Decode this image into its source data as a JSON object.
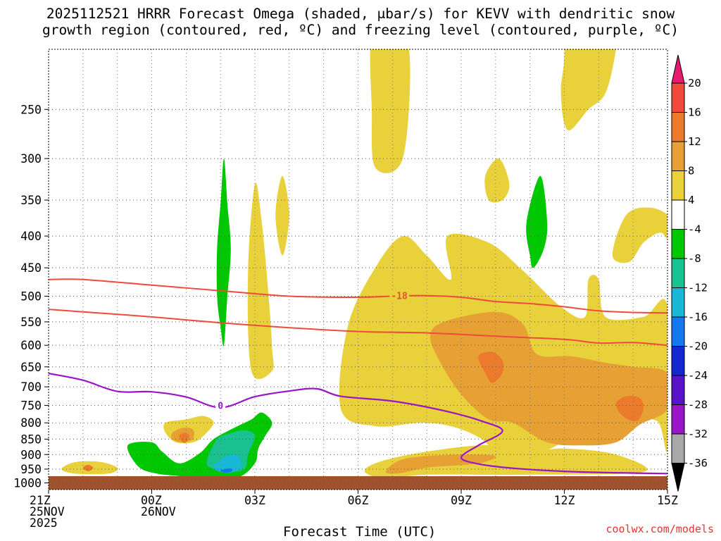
{
  "title": {
    "line1": "2025112521 HRRR Forecast Omega (shaded, μbar/s) for KEVV with dendritic snow",
    "line2": "growth region (contoured, red, ºC) and freezing level (contoured, purple, ºC)"
  },
  "xlabel": "Forecast Time (UTC)",
  "credit": "coolwx.com/models",
  "chart_data": {
    "type": "contour-timeseries",
    "x": {
      "unit": "hours after 21Z 25NOV2025",
      "range": [
        0,
        18
      ],
      "ticks": [
        {
          "h": 0,
          "lines": [
            "21Z",
            "25NOV",
            "2025"
          ]
        },
        {
          "h": 3,
          "lines": [
            "00Z",
            "26NOV"
          ]
        },
        {
          "h": 6,
          "lines": [
            "03Z"
          ]
        },
        {
          "h": 9,
          "lines": [
            "06Z"
          ]
        },
        {
          "h": 12,
          "lines": [
            "09Z"
          ]
        },
        {
          "h": 15,
          "lines": [
            "12Z"
          ]
        },
        {
          "h": 18,
          "lines": [
            "15Z"
          ]
        }
      ]
    },
    "y": {
      "unit": "hPa",
      "range_top": 200,
      "range_bottom": 1025,
      "ticks": [
        250,
        300,
        350,
        400,
        450,
        500,
        550,
        600,
        650,
        700,
        750,
        800,
        850,
        900,
        950,
        1000
      ]
    },
    "colorbar": {
      "labels": [
        "20",
        "16",
        "12",
        "8",
        "4",
        "-4",
        "-8",
        "-12",
        "-16",
        "-20",
        "-24",
        "-28",
        "-32",
        "-36"
      ],
      "colors": [
        "#e8196e",
        "#f04a3a",
        "#ec7a2c",
        "#e6a033",
        "#e8d13a",
        "#ffffff",
        "#00c800",
        "#19c090",
        "#19b8d8",
        "#1478ee",
        "#1428d0",
        "#5a14c8",
        "#9a14c8",
        "#a8a8a8",
        "#000000"
      ]
    },
    "contours": {
      "dgz_upper": {
        "label": "-18",
        "color": "#f04a3a",
        "points": [
          [
            0,
            470
          ],
          [
            1,
            470
          ],
          [
            3,
            480
          ],
          [
            5,
            490
          ],
          [
            7,
            500
          ],
          [
            9,
            502
          ],
          [
            10,
            500
          ],
          [
            11,
            499
          ],
          [
            12,
            502
          ],
          [
            13,
            510
          ],
          [
            14,
            514
          ],
          [
            15,
            520
          ],
          [
            16,
            528
          ],
          [
            17,
            531
          ],
          [
            18,
            532
          ]
        ]
      },
      "dgz_lower": {
        "color": "#f04a3a",
        "points": [
          [
            0,
            525
          ],
          [
            1,
            530
          ],
          [
            3,
            540
          ],
          [
            5,
            552
          ],
          [
            7,
            562
          ],
          [
            9,
            570
          ],
          [
            11,
            573
          ],
          [
            13,
            580
          ],
          [
            15,
            587
          ],
          [
            16,
            595
          ],
          [
            17,
            594
          ],
          [
            18,
            600
          ]
        ]
      },
      "freezing": {
        "label": "0",
        "color": "#9a14c8",
        "points": [
          [
            0,
            666
          ],
          [
            1,
            683
          ],
          [
            2,
            712
          ],
          [
            3,
            713
          ],
          [
            4,
            727
          ],
          [
            5,
            756
          ],
          [
            6,
            726
          ],
          [
            7,
            711
          ],
          [
            7.8,
            705
          ],
          [
            8.5,
            725
          ],
          [
            10,
            738
          ],
          [
            11.5,
            765
          ],
          [
            12.6,
            795
          ],
          [
            13.2,
            825
          ],
          [
            12.5,
            870
          ],
          [
            12,
            910
          ],
          [
            12.5,
            932
          ],
          [
            13.5,
            947
          ],
          [
            15,
            958
          ],
          [
            16.5,
            963
          ],
          [
            18,
            966
          ]
        ]
      }
    },
    "omega_regions": [
      {
        "level": "4",
        "color": "#e8d13a",
        "shape": [
          [
            9.5,
            810
          ],
          [
            8.5,
            760
          ],
          [
            8.7,
            560
          ],
          [
            9.5,
            450
          ],
          [
            10.3,
            400
          ],
          [
            11,
            430
          ],
          [
            11.7,
            470
          ],
          [
            11.6,
            400
          ],
          [
            12.8,
            410
          ],
          [
            13.8,
            455
          ],
          [
            14.9,
            520
          ],
          [
            15.6,
            540
          ],
          [
            15.7,
            470
          ],
          [
            16,
            470
          ],
          [
            16.2,
            540
          ],
          [
            17.3,
            540
          ],
          [
            18,
            520
          ],
          [
            18,
            875
          ],
          [
            17.7,
            795
          ],
          [
            16.8,
            795
          ],
          [
            16,
            830
          ],
          [
            15,
            860
          ],
          [
            14.3,
            895
          ],
          [
            13.3,
            925
          ],
          [
            12.6,
            850
          ],
          [
            11.7,
            810
          ],
          [
            10.8,
            800
          ]
        ]
      },
      {
        "level": "4",
        "color": "#e8d13a",
        "shape": [
          [
            16.4,
            430
          ],
          [
            16.8,
            370
          ],
          [
            17.5,
            360
          ],
          [
            18.1,
            375
          ],
          [
            18.1,
            410
          ],
          [
            17.8,
            395
          ],
          [
            17.3,
            410
          ],
          [
            16.9,
            440
          ]
        ]
      },
      {
        "level": "4",
        "color": "#e8d13a",
        "shape": [
          [
            14.7,
            100
          ],
          [
            15,
            190
          ],
          [
            14.9,
            235
          ],
          [
            15.1,
            270
          ],
          [
            15.7,
            250
          ],
          [
            16.2,
            235
          ],
          [
            16.5,
            200
          ],
          [
            16.6,
            170
          ],
          [
            17,
            120
          ]
        ]
      },
      {
        "level": "4",
        "color": "#e8d13a",
        "shape": [
          [
            9.4,
            190
          ],
          [
            10,
            185
          ],
          [
            10.5,
            205
          ],
          [
            10.3,
            300
          ],
          [
            9.5,
            310
          ],
          [
            9.4,
            250
          ]
        ]
      },
      {
        "level": "4",
        "color": "#e8d13a",
        "shape": [
          [
            12.7,
            320
          ],
          [
            13.1,
            300
          ],
          [
            13.4,
            330
          ],
          [
            13.2,
            350
          ],
          [
            12.8,
            350
          ]
        ]
      },
      {
        "level": "4",
        "color": "#e8d13a",
        "shape": [
          [
            6.6,
            370
          ],
          [
            6.8,
            320
          ],
          [
            7,
            370
          ],
          [
            6.8,
            430
          ]
        ]
      },
      {
        "level": "4",
        "color": "#e8d13a",
        "shape": [
          [
            5.8,
            460
          ],
          [
            6,
            330
          ],
          [
            6.2,
            380
          ],
          [
            6.4,
            500
          ],
          [
            6.5,
            605
          ],
          [
            6.5,
            660
          ],
          [
            5.9,
            660
          ]
        ]
      },
      {
        "level": "4",
        "color": "#e8d13a",
        "shape": [
          [
            9.2,
            960
          ],
          [
            9.5,
            930
          ],
          [
            10.5,
            900
          ],
          [
            12,
            875
          ],
          [
            13,
            870
          ],
          [
            14,
            890
          ],
          [
            15,
            880
          ],
          [
            16.5,
            900
          ],
          [
            17.3,
            960
          ],
          [
            14,
            970
          ],
          [
            11,
            970
          ],
          [
            9.8,
            985
          ]
        ]
      },
      {
        "level": "4",
        "color": "#e8d13a",
        "shape": [
          [
            3.4,
            800
          ],
          [
            4,
            790
          ],
          [
            4.5,
            780
          ],
          [
            4.8,
            800
          ],
          [
            4.5,
            840
          ],
          [
            4.2,
            860
          ],
          [
            3.7,
            860
          ],
          [
            3.4,
            830
          ]
        ]
      },
      {
        "level": "4",
        "color": "#e8d13a",
        "shape": [
          [
            0.4,
            945
          ],
          [
            0.8,
            925
          ],
          [
            1.5,
            925
          ],
          [
            2,
            945
          ],
          [
            1.8,
            965
          ],
          [
            1,
            968
          ],
          [
            0.5,
            960
          ]
        ]
      },
      {
        "level": "8",
        "color": "#e6a033",
        "shape": [
          [
            11.1,
            580
          ],
          [
            11.5,
            550
          ],
          [
            13,
            530
          ],
          [
            13.8,
            555
          ],
          [
            14.2,
            620
          ],
          [
            15.2,
            625
          ],
          [
            16.2,
            640
          ],
          [
            17,
            650
          ],
          [
            18,
            665
          ],
          [
            18,
            760
          ],
          [
            17.2,
            805
          ],
          [
            16.5,
            860
          ],
          [
            15.5,
            870
          ],
          [
            14.5,
            860
          ],
          [
            13.5,
            800
          ],
          [
            12.8,
            790
          ],
          [
            12,
            720
          ],
          [
            11.4,
            640
          ]
        ]
      },
      {
        "level": "8",
        "color": "#e6a033",
        "shape": [
          [
            9.8,
            960
          ],
          [
            10.2,
            920
          ],
          [
            11,
            905
          ],
          [
            12.2,
            900
          ],
          [
            13,
            905
          ],
          [
            12.7,
            925
          ],
          [
            12.1,
            935
          ],
          [
            11,
            945
          ],
          [
            10.2,
            965
          ]
        ]
      },
      {
        "level": "8",
        "color": "#e6a033",
        "shape": [
          [
            3.6,
            830
          ],
          [
            3.9,
            815
          ],
          [
            4.2,
            820
          ],
          [
            4.2,
            850
          ],
          [
            3.9,
            860
          ],
          [
            3.6,
            850
          ]
        ]
      },
      {
        "level": "12",
        "color": "#ec7a2c",
        "shape": [
          [
            12.5,
            625
          ],
          [
            12.9,
            615
          ],
          [
            13.2,
            635
          ],
          [
            13.2,
            665
          ],
          [
            12.9,
            690
          ],
          [
            12.7,
            665
          ]
        ]
      },
      {
        "level": "12",
        "color": "#ec7a2c",
        "shape": [
          [
            16.5,
            745
          ],
          [
            16.8,
            725
          ],
          [
            17.2,
            730
          ],
          [
            17.3,
            760
          ],
          [
            17.1,
            795
          ],
          [
            16.7,
            780
          ]
        ]
      },
      {
        "level": "12",
        "color": "#ec7a2c",
        "shape": [
          [
            3.8,
            840
          ],
          [
            3.95,
            830
          ],
          [
            4.1,
            840
          ],
          [
            4,
            860
          ],
          [
            3.9,
            860
          ]
        ]
      },
      {
        "level": "12",
        "color": "#ec7a2c",
        "shape": [
          [
            1,
            945
          ],
          [
            1.15,
            935
          ],
          [
            1.3,
            945
          ],
          [
            1.15,
            958
          ]
        ]
      },
      {
        "level": "-4",
        "color": "#00c800",
        "shape": [
          [
            4.9,
            420
          ],
          [
            5,
            355
          ],
          [
            5.1,
            300
          ],
          [
            5.2,
            355
          ],
          [
            5.3,
            420
          ],
          [
            5.2,
            500
          ],
          [
            5.1,
            600
          ],
          [
            5,
            560
          ],
          [
            4.9,
            500
          ]
        ]
      },
      {
        "level": "-4",
        "color": "#00c800",
        "shape": [
          [
            13.9,
            380
          ],
          [
            14.3,
            320
          ],
          [
            14.5,
            380
          ],
          [
            14.4,
            420
          ],
          [
            14.1,
            450
          ],
          [
            14,
            430
          ]
        ]
      },
      {
        "level": "-4",
        "color": "#00c800",
        "shape": [
          [
            2.3,
            870
          ],
          [
            3,
            860
          ],
          [
            3.3,
            890
          ],
          [
            3.8,
            930
          ],
          [
            4.4,
            895
          ],
          [
            4.8,
            850
          ],
          [
            5.4,
            815
          ],
          [
            5.9,
            790
          ],
          [
            6.2,
            770
          ],
          [
            6.5,
            800
          ],
          [
            6.3,
            840
          ],
          [
            6.1,
            880
          ],
          [
            6,
            930
          ],
          [
            5.5,
            980
          ],
          [
            4.5,
            985
          ],
          [
            3.8,
            975
          ],
          [
            3.1,
            965
          ],
          [
            2.6,
            940
          ]
        ]
      },
      {
        "level": "-8",
        "color": "#19c090",
        "shape": [
          [
            4.6,
            925
          ],
          [
            4.9,
            850
          ],
          [
            5.3,
            832
          ],
          [
            5.7,
            822
          ],
          [
            6,
            840
          ],
          [
            5.8,
            900
          ],
          [
            5.7,
            950
          ],
          [
            5.2,
            960
          ],
          [
            4.8,
            950
          ]
        ]
      },
      {
        "level": "-12",
        "color": "#19b8d8",
        "shape": [
          [
            4.8,
            940
          ],
          [
            5.2,
            905
          ],
          [
            5.5,
            905
          ],
          [
            5.6,
            935
          ],
          [
            5.4,
            960
          ],
          [
            5,
            960
          ]
        ]
      },
      {
        "level": "-16",
        "color": "#1478ee",
        "shape": [
          [
            5,
            955
          ],
          [
            5.2,
            948
          ],
          [
            5.35,
            950
          ],
          [
            5.3,
            960
          ],
          [
            5.1,
            962
          ]
        ]
      }
    ]
  }
}
